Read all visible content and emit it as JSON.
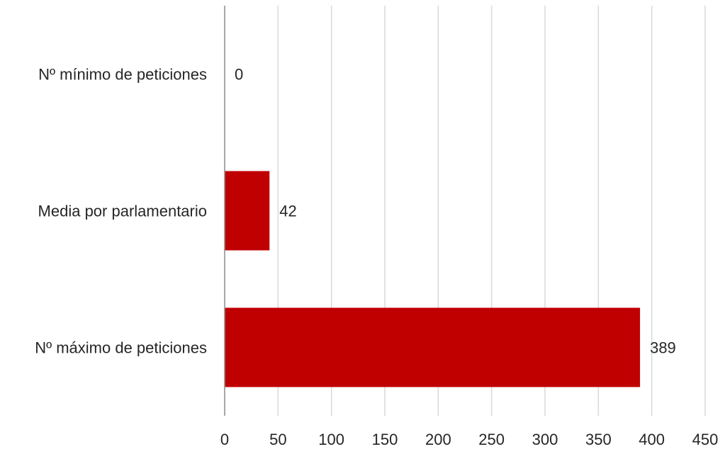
{
  "chart_data": {
    "type": "bar",
    "orientation": "horizontal",
    "title": "",
    "xlabel": "",
    "ylabel": "",
    "categories": [
      "Nº mínimo de peticiones",
      "Media por parlamentario",
      "Nº máximo de peticiones"
    ],
    "values": [
      0,
      42,
      389
    ],
    "data_labels": [
      "0",
      "42",
      "389"
    ],
    "xlim": [
      0,
      450
    ],
    "x_ticks": [
      0,
      50,
      100,
      150,
      200,
      250,
      300,
      350,
      400,
      450
    ],
    "grid": "vertical",
    "legend": "none",
    "bar_color": "#C00000"
  }
}
